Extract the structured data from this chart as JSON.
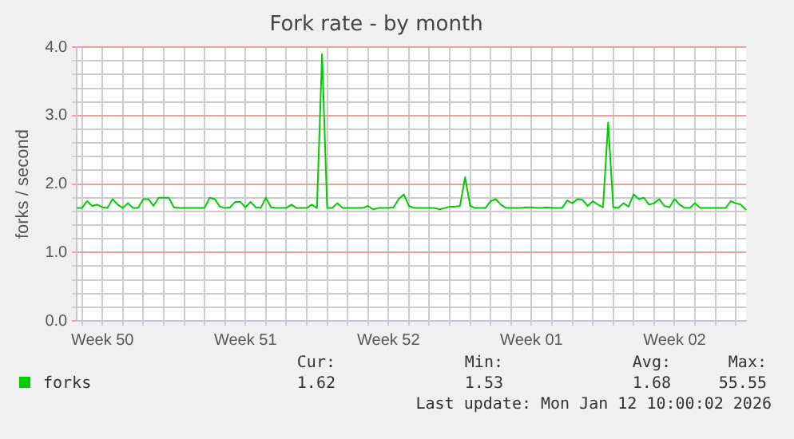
{
  "chart_data": {
    "type": "line",
    "title": "Fork rate - by month",
    "ylabel": "forks / second",
    "categories": [
      null,
      null,
      null,
      null,
      null,
      "Week 50",
      null,
      null,
      null,
      null,
      null,
      null,
      null,
      null,
      null,
      null,
      null,
      null,
      null,
      null,
      null,
      null,
      null,
      null,
      null,
      null,
      null,
      null,
      null,
      null,
      null,
      null,
      null,
      "Week 51",
      null,
      null,
      null,
      null,
      null,
      null,
      null,
      null,
      null,
      null,
      null,
      null,
      null,
      null,
      null,
      null,
      null,
      null,
      null,
      null,
      null,
      null,
      null,
      null,
      null,
      null,
      null,
      "Week 52",
      null,
      null,
      null,
      null,
      null,
      null,
      null,
      null,
      null,
      null,
      null,
      null,
      null,
      null,
      null,
      null,
      null,
      null,
      null,
      null,
      null,
      null,
      null,
      null,
      null,
      null,
      null,
      "Week 01",
      null,
      null,
      null,
      null,
      null,
      null,
      null,
      null,
      null,
      null,
      null,
      null,
      null,
      null,
      null,
      null,
      null,
      null,
      null,
      null,
      null,
      null,
      null,
      null,
      null,
      null,
      null,
      "Week 02",
      null,
      null,
      null,
      null,
      null,
      null,
      null,
      null,
      null,
      null,
      null,
      null,
      null,
      null
    ],
    "series": [
      {
        "name": "forks",
        "color": "#00cc00",
        "values": [
          1.65,
          1.65,
          1.75,
          1.68,
          1.7,
          1.66,
          1.65,
          1.78,
          1.7,
          1.65,
          1.72,
          1.65,
          1.65,
          1.78,
          1.78,
          1.68,
          1.8,
          1.8,
          1.8,
          1.66,
          1.65,
          1.65,
          1.65,
          1.65,
          1.65,
          1.65,
          1.8,
          1.78,
          1.67,
          1.65,
          1.66,
          1.74,
          1.74,
          1.66,
          1.74,
          1.66,
          1.65,
          1.8,
          1.66,
          1.65,
          1.65,
          1.65,
          1.7,
          1.65,
          1.65,
          1.65,
          1.7,
          1.65,
          3.9,
          1.65,
          1.65,
          1.72,
          1.65,
          1.65,
          1.65,
          1.65,
          1.65,
          1.68,
          1.63,
          1.65,
          1.65,
          1.65,
          1.66,
          1.78,
          1.85,
          1.68,
          1.65,
          1.65,
          1.65,
          1.65,
          1.65,
          1.63,
          1.65,
          1.67,
          1.67,
          1.68,
          2.1,
          1.68,
          1.65,
          1.65,
          1.65,
          1.75,
          1.78,
          1.7,
          1.65,
          1.65,
          1.65,
          1.65,
          1.66,
          1.66,
          1.65,
          1.65,
          1.66,
          1.65,
          1.65,
          1.65,
          1.76,
          1.72,
          1.78,
          1.77,
          1.68,
          1.75,
          1.7,
          1.66,
          2.9,
          1.66,
          1.65,
          1.72,
          1.67,
          1.85,
          1.78,
          1.8,
          1.7,
          1.72,
          1.78,
          1.68,
          1.66,
          1.78,
          1.7,
          1.65,
          1.65,
          1.72,
          1.65,
          1.65,
          1.65,
          1.65,
          1.65,
          1.65,
          1.75,
          1.72,
          1.7,
          1.62
        ]
      }
    ],
    "ylim": [
      0,
      4
    ],
    "yticks": [
      {
        "value": 0,
        "label": "0.0"
      },
      {
        "value": 0.2,
        "label": null
      },
      {
        "value": 0.4,
        "label": null
      },
      {
        "value": 0.6,
        "label": null
      },
      {
        "value": 0.8,
        "label": null
      },
      {
        "value": 1,
        "label": "1.0"
      },
      {
        "value": 1.2,
        "label": null
      },
      {
        "value": 1.4,
        "label": null
      },
      {
        "value": 1.6,
        "label": null
      },
      {
        "value": 1.8,
        "label": null
      },
      {
        "value": 2,
        "label": "2.0"
      },
      {
        "value": 2.2,
        "label": null
      },
      {
        "value": 2.4,
        "label": null
      },
      {
        "value": 2.6,
        "label": null
      },
      {
        "value": 2.8,
        "label": null
      },
      {
        "value": 3,
        "label": "3.0"
      },
      {
        "value": 3.2,
        "label": null
      },
      {
        "value": 3.4,
        "label": null
      },
      {
        "value": 3.6,
        "label": null
      },
      {
        "value": 3.8,
        "label": null
      },
      {
        "value": 4,
        "label": "4.0"
      }
    ],
    "grid": true,
    "legend": "bottom left",
    "marker": "none",
    "line_style": "solid",
    "annotations": [
      "Cur:",
      "Min:",
      "Avg:",
      "Max:",
      "1.62",
      "1.53",
      "1.68",
      "55.55",
      "Last update: Mon Jan 12 10:00:02 2026"
    ]
  }
}
